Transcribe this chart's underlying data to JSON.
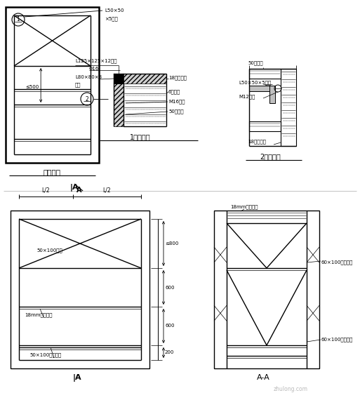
{
  "bg_color": "#ffffff",
  "line_color": "#000000",
  "title1": "门洞套模",
  "title2": "1节点大样",
  "title3": "2节点大样",
  "label_A_bottom": "A",
  "label_AA": "A-A"
}
